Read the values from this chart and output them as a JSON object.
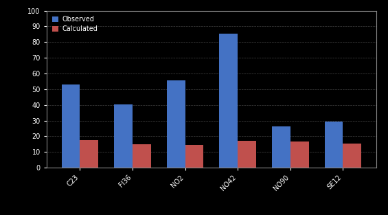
{
  "categories": [
    "C23",
    "FI36",
    "NO2",
    "NO42",
    "NO90",
    "SE12"
  ],
  "observed": [
    530,
    405,
    555,
    855,
    265,
    295
  ],
  "calculated": [
    175,
    150,
    145,
    170,
    165,
    155
  ],
  "observed_color": "#4472C4",
  "calculated_color": "#C0504D",
  "ylim": [
    0,
    1000
  ],
  "yticks": [
    0,
    100,
    200,
    300,
    400,
    500,
    600,
    700,
    800,
    900,
    1000
  ],
  "ytick_labels": [
    "0",
    "10",
    "20",
    "30",
    "40",
    "50",
    "60",
    "70",
    "80",
    "90",
    "100"
  ],
  "legend_labels": [
    "Observed",
    "Calculated"
  ],
  "background_color": "#000000",
  "plot_bg_color": "#000000",
  "text_color": "#ffffff",
  "grid_color": "#555555",
  "bar_width": 0.35,
  "figsize": [
    5.65,
    3.13
  ],
  "dpi": 100
}
